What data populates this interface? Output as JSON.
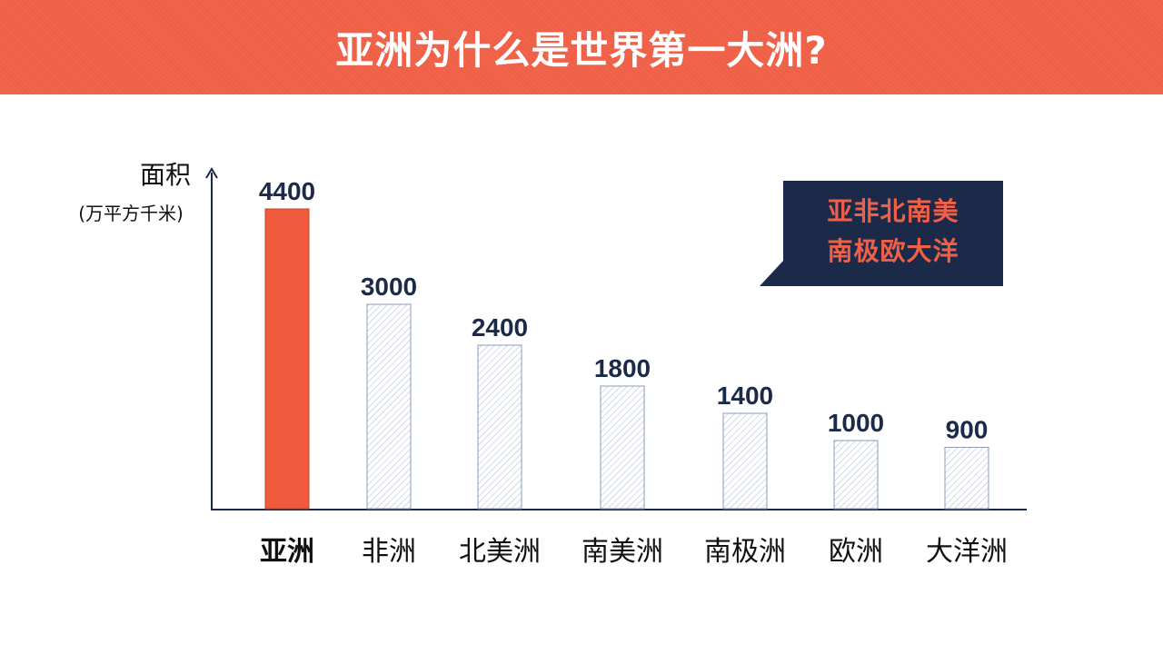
{
  "title": "亚洲为什么是世界第一大洲?",
  "callout": {
    "line1": "亚非北南美",
    "line2": "南极欧大洋"
  },
  "colors": {
    "banner": "#ef6047",
    "highlight_bar": "#f05a3c",
    "other_bar_fill": "#ffffff",
    "other_bar_stroke": "#8a9bb8",
    "value_text": "#1c2a4a",
    "axis": "#1c2a4a",
    "callout_bg": "#1c2a4a",
    "callout_text": "#ef6047"
  },
  "chart_data": {
    "type": "bar",
    "ylabel": "面积",
    "yunit": "(万平方千米)",
    "categories": [
      "亚洲",
      "非洲",
      "北美洲",
      "南美洲",
      "南极洲",
      "欧洲",
      "大洋洲"
    ],
    "values": [
      4400,
      3000,
      2400,
      1800,
      1400,
      1000,
      900
    ],
    "highlight_index": 0,
    "ylim": [
      0,
      4400
    ],
    "grid": false
  }
}
